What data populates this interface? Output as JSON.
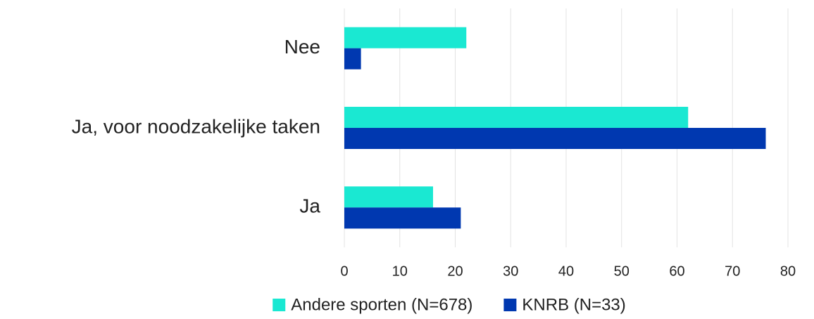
{
  "chart_data": {
    "type": "barh",
    "categories": [
      "Nee",
      "Ja, voor noodzakelijke taken",
      "Ja"
    ],
    "series": [
      {
        "name": "Andere sporten (N=678)",
        "color": "#1ae8d2",
        "values": [
          22,
          62,
          16
        ]
      },
      {
        "name": "KNRB (N=33)",
        "color": "#0038b0",
        "values": [
          3,
          76,
          21
        ]
      }
    ],
    "xlim": [
      0,
      80
    ],
    "xticks": [
      0,
      10,
      20,
      30,
      40,
      50,
      60,
      70,
      80
    ],
    "grid": true,
    "legend": "bottom"
  }
}
